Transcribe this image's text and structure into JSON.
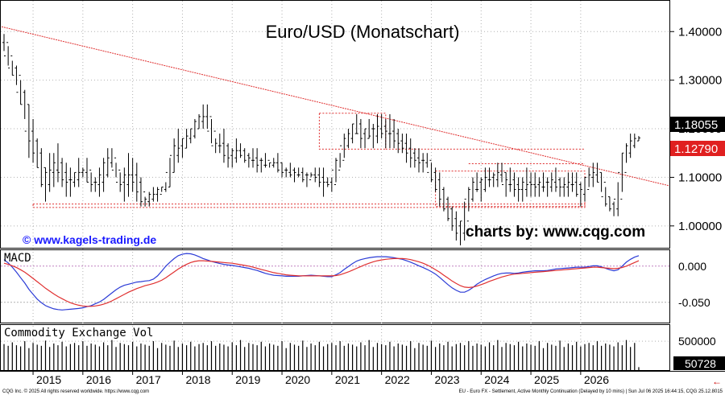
{
  "title": "Euro/USD (Monatschart)",
  "watermark_left": "© www.kagels-trading.de",
  "watermark_right": "charts by: www.cqg.com",
  "footer_left": "CQG Inc. © 2025 All rights reserved worldwide. https://www.cqg.com",
  "footer_right": "EU - Euro FX - Settlement, Active Monthly Continuation (Delayed by 10 mins) | Sun Jul 06 2025 16:44:15, CQG 25.12.8015",
  "colors": {
    "bars": "#000000",
    "trend": "#e03030",
    "macd": "#2b3bd6",
    "signal": "#e03030",
    "volume": "#000000",
    "last_badge": "#000000",
    "level_badge": "#e02020"
  },
  "chart_data": [
    {
      "type": "ohlc",
      "title": "Euro/USD (Monatschart)",
      "ylim": [
        0.955,
        1.465
      ],
      "y_ticks": [
        "1.40000",
        "1.30000",
        "1.20000",
        "1.10000",
        "1.00000"
      ],
      "x_ticks": [
        "2015",
        "2016",
        "2017",
        "2018",
        "2019",
        "2020",
        "2021",
        "2022",
        "2023",
        "2024",
        "2025",
        "2026"
      ],
      "last_price": "1.18055",
      "marked_level": "1.12790",
      "highs": [
        1.395,
        1.37,
        1.34,
        1.33,
        1.3,
        1.28,
        1.25,
        1.22,
        1.18,
        1.16,
        1.12,
        1.15,
        1.15,
        1.17,
        1.14,
        1.13,
        1.12,
        1.11,
        1.14,
        1.12,
        1.14,
        1.11,
        1.1,
        1.12,
        1.14,
        1.16,
        1.16,
        1.13,
        1.11,
        1.12,
        1.15,
        1.14,
        1.13,
        1.1,
        1.06,
        1.07,
        1.08,
        1.08,
        1.08,
        1.09,
        1.14,
        1.18,
        1.2,
        1.18,
        1.2,
        1.2,
        1.22,
        1.23,
        1.25,
        1.25,
        1.22,
        1.18,
        1.19,
        1.2,
        1.17,
        1.16,
        1.18,
        1.17,
        1.16,
        1.15,
        1.16,
        1.16,
        1.14,
        1.15,
        1.13,
        1.14,
        1.15,
        1.13,
        1.12,
        1.13,
        1.12,
        1.12,
        1.12,
        1.11,
        1.11,
        1.12,
        1.12,
        1.12,
        1.1,
        1.1,
        1.14,
        1.15,
        1.19,
        1.2,
        1.21,
        1.23,
        1.22,
        1.2,
        1.22,
        1.21,
        1.23,
        1.23,
        1.22,
        1.23,
        1.22,
        1.2,
        1.19,
        1.19,
        1.18,
        1.16,
        1.16,
        1.15,
        1.15,
        1.13,
        1.12,
        1.11,
        1.08,
        1.06,
        1.04,
        1.03,
        1.01,
        1.05,
        1.08,
        1.1,
        1.11,
        1.1,
        1.12,
        1.12,
        1.11,
        1.13,
        1.13,
        1.11,
        1.12,
        1.11,
        1.1,
        1.1,
        1.12,
        1.11,
        1.11,
        1.1,
        1.11,
        1.1,
        1.11,
        1.12,
        1.1,
        1.1,
        1.11,
        1.11,
        1.11,
        1.09,
        1.1,
        1.12,
        1.13,
        1.13,
        1.11,
        1.08,
        1.06,
        1.05,
        1.09,
        1.15,
        1.17,
        1.19,
        1.19,
        1.185
      ],
      "lows": [
        1.36,
        1.33,
        1.31,
        1.29,
        1.25,
        1.22,
        1.14,
        1.13,
        1.12,
        1.08,
        1.05,
        1.07,
        1.08,
        1.09,
        1.08,
        1.06,
        1.06,
        1.08,
        1.08,
        1.1,
        1.09,
        1.07,
        1.07,
        1.06,
        1.07,
        1.1,
        1.12,
        1.1,
        1.07,
        1.05,
        1.06,
        1.07,
        1.05,
        1.04,
        1.04,
        1.04,
        1.05,
        1.05,
        1.07,
        1.07,
        1.08,
        1.11,
        1.13,
        1.14,
        1.16,
        1.17,
        1.18,
        1.2,
        1.2,
        1.2,
        1.17,
        1.15,
        1.15,
        1.13,
        1.12,
        1.12,
        1.13,
        1.14,
        1.13,
        1.12,
        1.12,
        1.11,
        1.11,
        1.12,
        1.12,
        1.12,
        1.11,
        1.1,
        1.1,
        1.1,
        1.09,
        1.1,
        1.09,
        1.08,
        1.1,
        1.09,
        1.08,
        1.06,
        1.08,
        1.07,
        1.09,
        1.12,
        1.14,
        1.16,
        1.17,
        1.19,
        1.16,
        1.16,
        1.18,
        1.16,
        1.17,
        1.18,
        1.16,
        1.16,
        1.16,
        1.15,
        1.15,
        1.13,
        1.12,
        1.12,
        1.11,
        1.11,
        1.12,
        1.09,
        1.07,
        1.04,
        1.03,
        1.01,
        0.99,
        0.97,
        0.96,
        0.97,
        1.03,
        1.05,
        1.07,
        1.05,
        1.07,
        1.08,
        1.08,
        1.08,
        1.09,
        1.06,
        1.07,
        1.06,
        1.05,
        1.05,
        1.06,
        1.06,
        1.06,
        1.06,
        1.07,
        1.06,
        1.07,
        1.07,
        1.06,
        1.06,
        1.06,
        1.07,
        1.06,
        1.04,
        1.05,
        1.08,
        1.08,
        1.09,
        1.07,
        1.04,
        1.03,
        1.02,
        1.02,
        1.07,
        1.13,
        1.14,
        1.16,
        1.175
      ]
    },
    {
      "type": "line",
      "title": "MACD",
      "ylim": [
        -0.078,
        0.022
      ],
      "y_ticks": [
        "0.000",
        "-0.050"
      ],
      "series": [
        {
          "name": "",
          "values": [
            0.009,
            0.0045,
            -0.0015,
            -0.0085,
            -0.016,
            -0.0235,
            -0.032,
            -0.039,
            -0.0455,
            -0.0505,
            -0.0545,
            -0.057,
            -0.059,
            -0.06,
            -0.0605,
            -0.06,
            -0.0595,
            -0.059,
            -0.0585,
            -0.0575,
            -0.056,
            -0.0545,
            -0.052,
            -0.0495,
            -0.046,
            -0.0415,
            -0.037,
            -0.0325,
            -0.029,
            -0.0265,
            -0.025,
            -0.0235,
            -0.022,
            -0.0215,
            -0.0205,
            -0.02,
            -0.018,
            -0.0135,
            -0.007,
            0.0,
            0.0055,
            0.0105,
            0.0145,
            0.0165,
            0.0175,
            0.017,
            0.0155,
            0.013,
            0.0105,
            0.0085,
            0.0065,
            0.005,
            0.0035,
            0.0025,
            0.0015,
            0.001,
            0.0,
            -0.001,
            -0.002,
            -0.003,
            -0.0045,
            -0.006,
            -0.008,
            -0.01,
            -0.0115,
            -0.0125,
            -0.013,
            -0.0135,
            -0.014,
            -0.014,
            -0.014,
            -0.014,
            -0.0135,
            -0.013,
            -0.0125,
            -0.013,
            -0.0135,
            -0.014,
            -0.0145,
            -0.0145,
            -0.012,
            -0.009,
            -0.0045,
            -0.0005,
            0.0035,
            0.007,
            0.009,
            0.0105,
            0.0115,
            0.0125,
            0.013,
            0.013,
            0.013,
            0.0125,
            0.0115,
            0.0105,
            0.0095,
            0.0075,
            0.0055,
            0.003,
            0.0005,
            -0.002,
            -0.0045,
            -0.0075,
            -0.011,
            -0.0155,
            -0.0205,
            -0.0255,
            -0.03,
            -0.0335,
            -0.036,
            -0.036,
            -0.0335,
            -0.0295,
            -0.025,
            -0.0215,
            -0.0185,
            -0.016,
            -0.0135,
            -0.0115,
            -0.01,
            -0.0095,
            -0.0095,
            -0.01,
            -0.0095,
            -0.0085,
            -0.0075,
            -0.007,
            -0.0065,
            -0.0065,
            -0.0065,
            -0.006,
            -0.005,
            -0.004,
            -0.0035,
            -0.003,
            -0.0025,
            -0.002,
            -0.0015,
            -0.0015,
            -0.0015,
            -0.0005,
            0.0005,
            0.0005,
            -0.001,
            -0.003,
            -0.005,
            -0.0065,
            -0.005,
            0.0,
            0.0055,
            0.0095,
            0.0125,
            0.0145
          ]
        },
        {
          "name": "",
          "values": [
            0.004,
            0.0025,
            0.0005,
            -0.002,
            -0.005,
            -0.0085,
            -0.0125,
            -0.017,
            -0.0215,
            -0.026,
            -0.0305,
            -0.0345,
            -0.0385,
            -0.042,
            -0.045,
            -0.048,
            -0.0505,
            -0.0525,
            -0.054,
            -0.055,
            -0.0555,
            -0.0555,
            -0.055,
            -0.054,
            -0.0525,
            -0.0505,
            -0.048,
            -0.045,
            -0.042,
            -0.039,
            -0.036,
            -0.0335,
            -0.031,
            -0.029,
            -0.027,
            -0.0255,
            -0.024,
            -0.022,
            -0.0195,
            -0.016,
            -0.012,
            -0.008,
            -0.004,
            -0.0005,
            0.0025,
            0.005,
            0.0065,
            0.0075,
            0.0075,
            0.007,
            0.0065,
            0.006,
            0.0055,
            0.005,
            0.0045,
            0.004,
            0.003,
            0.002,
            0.001,
            0.0,
            -0.0015,
            -0.003,
            -0.0045,
            -0.006,
            -0.0075,
            -0.009,
            -0.01,
            -0.011,
            -0.012,
            -0.0125,
            -0.013,
            -0.0135,
            -0.0135,
            -0.0135,
            -0.0135,
            -0.0135,
            -0.0135,
            -0.0135,
            -0.0135,
            -0.0135,
            -0.013,
            -0.012,
            -0.01,
            -0.008,
            -0.0055,
            -0.003,
            -0.0005,
            0.002,
            0.004,
            0.006,
            0.0075,
            0.0085,
            0.0095,
            0.01,
            0.0105,
            0.0105,
            0.0105,
            0.01,
            0.009,
            0.0075,
            0.006,
            0.004,
            0.0015,
            -0.0015,
            -0.005,
            -0.0085,
            -0.0125,
            -0.0165,
            -0.0205,
            -0.024,
            -0.027,
            -0.029,
            -0.0295,
            -0.029,
            -0.0275,
            -0.0255,
            -0.0235,
            -0.021,
            -0.019,
            -0.017,
            -0.015,
            -0.0135,
            -0.012,
            -0.011,
            -0.0105,
            -0.01,
            -0.0095,
            -0.009,
            -0.0085,
            -0.008,
            -0.0075,
            -0.007,
            -0.0065,
            -0.006,
            -0.0055,
            -0.005,
            -0.0045,
            -0.004,
            -0.0035,
            -0.003,
            -0.0025,
            -0.002,
            -0.0015,
            -0.0015,
            -0.002,
            -0.0025,
            -0.003,
            -0.0035,
            -0.003,
            -0.002,
            0.0,
            0.0025,
            0.005,
            0.0075
          ]
        }
      ]
    },
    {
      "type": "bar",
      "title": "Commodity Exchange Vol",
      "ylim": [
        0,
        780000
      ],
      "y_ticks": [
        "500000"
      ],
      "last_value": "50728",
      "values": [
        450000,
        420000,
        480000,
        430000,
        410000,
        500000,
        380000,
        470000,
        440000,
        420000,
        510000,
        400000,
        460000,
        430000,
        490000,
        410000,
        450000,
        470000,
        430000,
        500000,
        420000,
        460000,
        440000,
        410000,
        480000,
        430000,
        520000,
        400000,
        470000,
        450000,
        430000,
        490000,
        410000,
        460000,
        440000,
        420000,
        500000,
        380000,
        470000,
        440000,
        420000,
        510000,
        400000,
        460000,
        430000,
        490000,
        410000,
        450000,
        470000,
        430000,
        500000,
        420000,
        460000,
        440000,
        410000,
        480000,
        430000,
        520000,
        400000,
        470000,
        450000,
        430000,
        490000,
        410000,
        460000,
        440000,
        420000,
        500000,
        380000,
        470000,
        440000,
        420000,
        510000,
        400000,
        460000,
        430000,
        490000,
        410000,
        450000,
        470000,
        430000,
        500000,
        420000,
        460000,
        440000,
        410000,
        480000,
        430000,
        520000,
        400000,
        470000,
        450000,
        430000,
        490000,
        410000,
        460000,
        440000,
        420000,
        500000,
        380000,
        470000,
        440000,
        420000,
        510000,
        400000,
        460000,
        430000,
        490000,
        410000,
        450000,
        470000,
        430000,
        500000,
        420000,
        460000,
        440000,
        410000,
        480000,
        430000,
        520000,
        400000,
        470000,
        450000,
        430000,
        490000,
        410000,
        460000,
        440000,
        420000,
        500000,
        380000,
        470000,
        440000,
        420000,
        510000,
        400000,
        460000,
        430000,
        490000,
        410000,
        450000,
        470000,
        430000,
        500000,
        420000,
        460000,
        440000,
        410000,
        480000,
        430000,
        520000,
        400000,
        470000,
        50728
      ]
    }
  ]
}
